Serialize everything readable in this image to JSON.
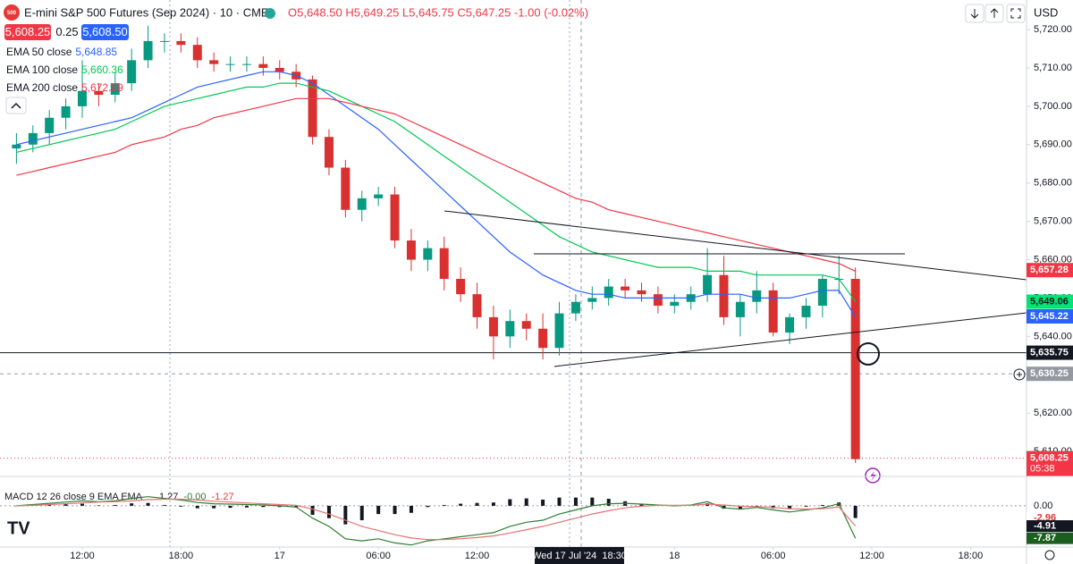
{
  "ui": {
    "logo": "500",
    "title": "E-mini S&P 500 Futures (Sep 2024) · 10 · CME",
    "ohlc": "O5,648.50 H5,649.25 L5,645.75 C5,647.25 -1.00 (-0.02%)",
    "sell": "5,608.25",
    "spread": "0.25",
    "buy": "5,608.50",
    "currency": "USD",
    "crosshair_time": "Wed 17 Jul '24  18:30"
  },
  "chart_data": [
    {
      "type": "candlestick",
      "up_color": "#089981",
      "down_color": "#d93030",
      "x": [
        0,
        1,
        2,
        3,
        4,
        5,
        6,
        7,
        8,
        9,
        10,
        11,
        12,
        13,
        14,
        15,
        16,
        17,
        18,
        19,
        20,
        21,
        22,
        23,
        24,
        25,
        26,
        27,
        28,
        29,
        30,
        31,
        32,
        33,
        34,
        35,
        36,
        37,
        38,
        39,
        40,
        41,
        42,
        43,
        44,
        45,
        46,
        47,
        48,
        49,
        50,
        51
      ],
      "open": [
        5689,
        5690,
        5693,
        5697,
        5700,
        5704,
        5703,
        5706,
        5712,
        5717,
        5717,
        5716,
        5712,
        5711,
        5711,
        5711,
        5710,
        5709,
        5707,
        5692,
        5684,
        5673,
        5676,
        5677,
        5665,
        5660,
        5663,
        5655,
        5651,
        5645,
        5640,
        5644,
        5642,
        5637,
        5646,
        5649,
        5650,
        5653,
        5652,
        5651,
        5648,
        5649,
        5651,
        5656,
        5645,
        5649,
        5652,
        5641,
        5645,
        5648,
        5655,
        5655
      ],
      "high": [
        5693,
        5695,
        5699,
        5702,
        5712,
        5706,
        5709,
        5715,
        5721,
        5719,
        5719,
        5718,
        5714,
        5713,
        5713,
        5713,
        5712,
        5711,
        5708,
        5694,
        5686,
        5678,
        5679,
        5679,
        5668,
        5665,
        5666,
        5658,
        5654,
        5648,
        5647,
        5646,
        5646,
        5649,
        5651,
        5653,
        5655,
        5655,
        5654,
        5653,
        5651,
        5653,
        5663,
        5661,
        5651,
        5657,
        5654,
        5646,
        5650,
        5656,
        5661,
        5658
      ],
      "low": [
        5685,
        5688,
        5690,
        5694,
        5697,
        5700,
        5701,
        5704,
        5710,
        5714,
        5714,
        5710,
        5709,
        5709,
        5709,
        5708,
        5707,
        5705,
        5690,
        5682,
        5671,
        5670,
        5674,
        5663,
        5657,
        5657,
        5652,
        5649,
        5642,
        5634,
        5637,
        5639,
        5634,
        5635,
        5644,
        5647,
        5648,
        5650,
        5649,
        5646,
        5646,
        5647,
        5649,
        5643,
        5640,
        5646,
        5640,
        5638,
        5642,
        5645,
        5651,
        5607
      ],
      "close": [
        5690,
        5693,
        5697,
        5700,
        5704,
        5703,
        5706,
        5712,
        5717,
        5717,
        5716,
        5712,
        5711,
        5711,
        5711,
        5710,
        5709,
        5707,
        5692,
        5684,
        5673,
        5676,
        5677,
        5665,
        5660,
        5663,
        5655,
        5651,
        5645,
        5640,
        5644,
        5642,
        5637,
        5646,
        5649,
        5650,
        5653,
        5652,
        5651,
        5648,
        5649,
        5651,
        5656,
        5645,
        5649,
        5652,
        5641,
        5645,
        5648,
        5655,
        5655,
        5608
      ],
      "overlays": [
        {
          "name": "EMA 50 close",
          "legend_value": "5,648.85",
          "color": "#2962ff",
          "values": [
            5690,
            5691,
            5692,
            5693,
            5694,
            5695,
            5696,
            5697,
            5699,
            5701,
            5703,
            5705,
            5706,
            5707,
            5708,
            5709,
            5709,
            5708,
            5706,
            5703,
            5700,
            5697,
            5694,
            5690,
            5686,
            5682,
            5678,
            5674,
            5670,
            5666,
            5662,
            5659,
            5656,
            5654,
            5652,
            5651,
            5651,
            5650,
            5650,
            5650,
            5650,
            5650,
            5651,
            5651,
            5651,
            5650,
            5650,
            5650,
            5651,
            5652,
            5652,
            5645
          ]
        },
        {
          "name": "EMA 100 close",
          "legend_value": "5,660.36",
          "color": "#00c853",
          "values": [
            5688,
            5689,
            5690,
            5691,
            5692,
            5693,
            5694,
            5696,
            5698,
            5700,
            5701,
            5702,
            5703,
            5704,
            5705,
            5705,
            5706,
            5706,
            5705,
            5704,
            5702,
            5700,
            5698,
            5696,
            5693,
            5690,
            5687,
            5684,
            5681,
            5678,
            5675,
            5672,
            5669,
            5666,
            5664,
            5662,
            5661,
            5660,
            5659,
            5658,
            5658,
            5658,
            5657,
            5657,
            5657,
            5656,
            5656,
            5656,
            5656,
            5656,
            5655,
            5649
          ]
        },
        {
          "name": "EMA 200 close",
          "legend_value": "5,672.89",
          "color": "#f23645",
          "values": [
            5682,
            5683,
            5684,
            5685,
            5686,
            5687,
            5688,
            5690,
            5691,
            5692,
            5694,
            5695,
            5697,
            5698,
            5699,
            5700,
            5701,
            5702,
            5702,
            5702,
            5701,
            5700,
            5699,
            5698,
            5696,
            5694,
            5692,
            5690,
            5688,
            5686,
            5684,
            5682,
            5680,
            5678,
            5676,
            5675,
            5673,
            5672,
            5671,
            5670,
            5669,
            5668,
            5667,
            5666,
            5665,
            5664,
            5663,
            5662,
            5661,
            5660,
            5659,
            5657
          ]
        }
      ],
      "xlim": [
        -1,
        61.4
      ],
      "xticks": [
        {
          "value": 4,
          "label": "12:00"
        },
        {
          "value": 10,
          "label": "18:00"
        },
        {
          "value": 16,
          "label": "17"
        },
        {
          "value": 22,
          "label": "06:00"
        },
        {
          "value": 28,
          "label": "12:00"
        },
        {
          "value": 40,
          "label": "18"
        },
        {
          "value": 46,
          "label": "06:00"
        },
        {
          "value": 52,
          "label": "12:00"
        },
        {
          "value": 58,
          "label": "18:00"
        }
      ],
      "ylim": [
        5604.2,
        5727.7
      ],
      "yticks": [
        {
          "value": 5610,
          "label": "5,610.00"
        },
        {
          "value": 5620,
          "label": "5,620.00"
        },
        {
          "value": 5630,
          "label": "5,630.00"
        },
        {
          "value": 5640,
          "label": "5,640.00"
        },
        {
          "value": 5650,
          "label": "5,650.00"
        },
        {
          "value": 5660,
          "label": "5,660.00"
        },
        {
          "value": 5670,
          "label": "5,670.00"
        },
        {
          "value": 5680,
          "label": "5,680.00"
        },
        {
          "value": 5690,
          "label": "5,690.00"
        },
        {
          "value": 5700,
          "label": "5,700.00"
        },
        {
          "value": 5710,
          "label": "5,710.00"
        },
        {
          "value": 5720,
          "label": "5,720.00"
        }
      ],
      "price_lines": [
        {
          "value": 5635.75,
          "label": "5,635.75",
          "color": "#131722",
          "style": "solid"
        },
        {
          "value": 5630.25,
          "label": "5,630.25",
          "color": "#9598a1",
          "style": "dashed"
        },
        {
          "value": 5608.25,
          "label": "5,608.25",
          "color": "#f23645",
          "style": "dotted"
        }
      ],
      "price_tags": [
        {
          "value": 5657.28,
          "label": "5,657.28",
          "color": "#f23645",
          "text_color": "#ffffff"
        },
        {
          "value": 5649.06,
          "label": "5,649.06",
          "color": "#00e676",
          "text_color": "#131722"
        },
        {
          "value": 5645.22,
          "label": "5,645.22",
          "color": "#2962ff",
          "text_color": "#ffffff"
        }
      ],
      "countdown": "05:38"
    },
    {
      "type": "macd",
      "title": "MACD 12 26 close 9 EMA EMA",
      "legend_values": [
        {
          "text": "1.27",
          "color": "#131722"
        },
        {
          "text": "-0.00",
          "color": "#2e7d32"
        },
        {
          "text": "-1.27",
          "color": "#e53935"
        }
      ],
      "series": [
        {
          "name": "Histogram",
          "color": "#131722",
          "values": [
            0,
            0.2,
            0.3,
            0.4,
            0.5,
            0.1,
            0.2,
            0.6,
            0.7,
            0.2,
            -0.2,
            -0.6,
            -0.6,
            -0.5,
            -0.4,
            -0.3,
            -0.3,
            -0.4,
            -2.2,
            -3,
            -4.5,
            -3.5,
            -2,
            -2,
            -1.7,
            -0.3,
            0.2,
            0.5,
            0.7,
            0.8,
            1.6,
            1.8,
            1.5,
            2,
            2,
            2,
            1.7,
            1.1,
            0.5,
            0.1,
            -0.1,
            0.1,
            0.6,
            -0.7,
            -0.7,
            -0.2,
            -0.6,
            -0.8,
            -0.2,
            0.2,
            0.8,
            -2.96
          ]
        },
        {
          "name": "MACD",
          "color": "#2e7d32",
          "values": [
            0,
            0.3,
            0.6,
            0.9,
            1.2,
            1,
            1.2,
            1.8,
            2.2,
            1.8,
            1.4,
            0.8,
            0.5,
            0.4,
            0.3,
            0.2,
            0,
            -0.3,
            -3,
            -5,
            -8,
            -8.5,
            -8,
            -9,
            -9.5,
            -8.5,
            -8,
            -7.5,
            -7,
            -6.5,
            -5,
            -4,
            -3.5,
            -2,
            -1,
            0,
            0.5,
            0.6,
            0.4,
            0.2,
            0,
            0.2,
            1,
            -0.5,
            -0.8,
            -0.4,
            -1,
            -1.5,
            -1,
            -0.5,
            0.5,
            -7.87
          ]
        },
        {
          "name": "Signal",
          "color": "#e57373",
          "values": [
            0,
            0.1,
            0.3,
            0.5,
            0.7,
            0.9,
            1,
            1.2,
            1.5,
            1.6,
            1.6,
            1.4,
            1.1,
            0.9,
            0.7,
            0.5,
            0.3,
            0.1,
            -0.8,
            -2,
            -3.5,
            -5,
            -6,
            -7,
            -7.8,
            -8.2,
            -8.2,
            -8,
            -7.7,
            -7.3,
            -6.6,
            -5.8,
            -5,
            -4,
            -3,
            -2,
            -1.2,
            -0.5,
            -0.1,
            0.1,
            0.1,
            0.1,
            0.4,
            0.2,
            -0.1,
            -0.2,
            -0.4,
            -0.7,
            -0.8,
            -0.7,
            -0.3,
            -4.91
          ]
        }
      ],
      "ylim": [
        -10,
        6.7
      ],
      "yticks": [
        {
          "value": 0,
          "label": "0.00"
        }
      ],
      "tags": [
        {
          "value": -2.96,
          "label": "-2.96",
          "color": "#ffffff",
          "text_color": "#e53935"
        },
        {
          "value": -4.91,
          "label": "-4.91",
          "color": "#131722",
          "text_color": "#ffffff"
        },
        {
          "value": -7.87,
          "label": "-7.87",
          "color": "#1b5e20",
          "text_color": "#ffffff"
        }
      ]
    }
  ]
}
